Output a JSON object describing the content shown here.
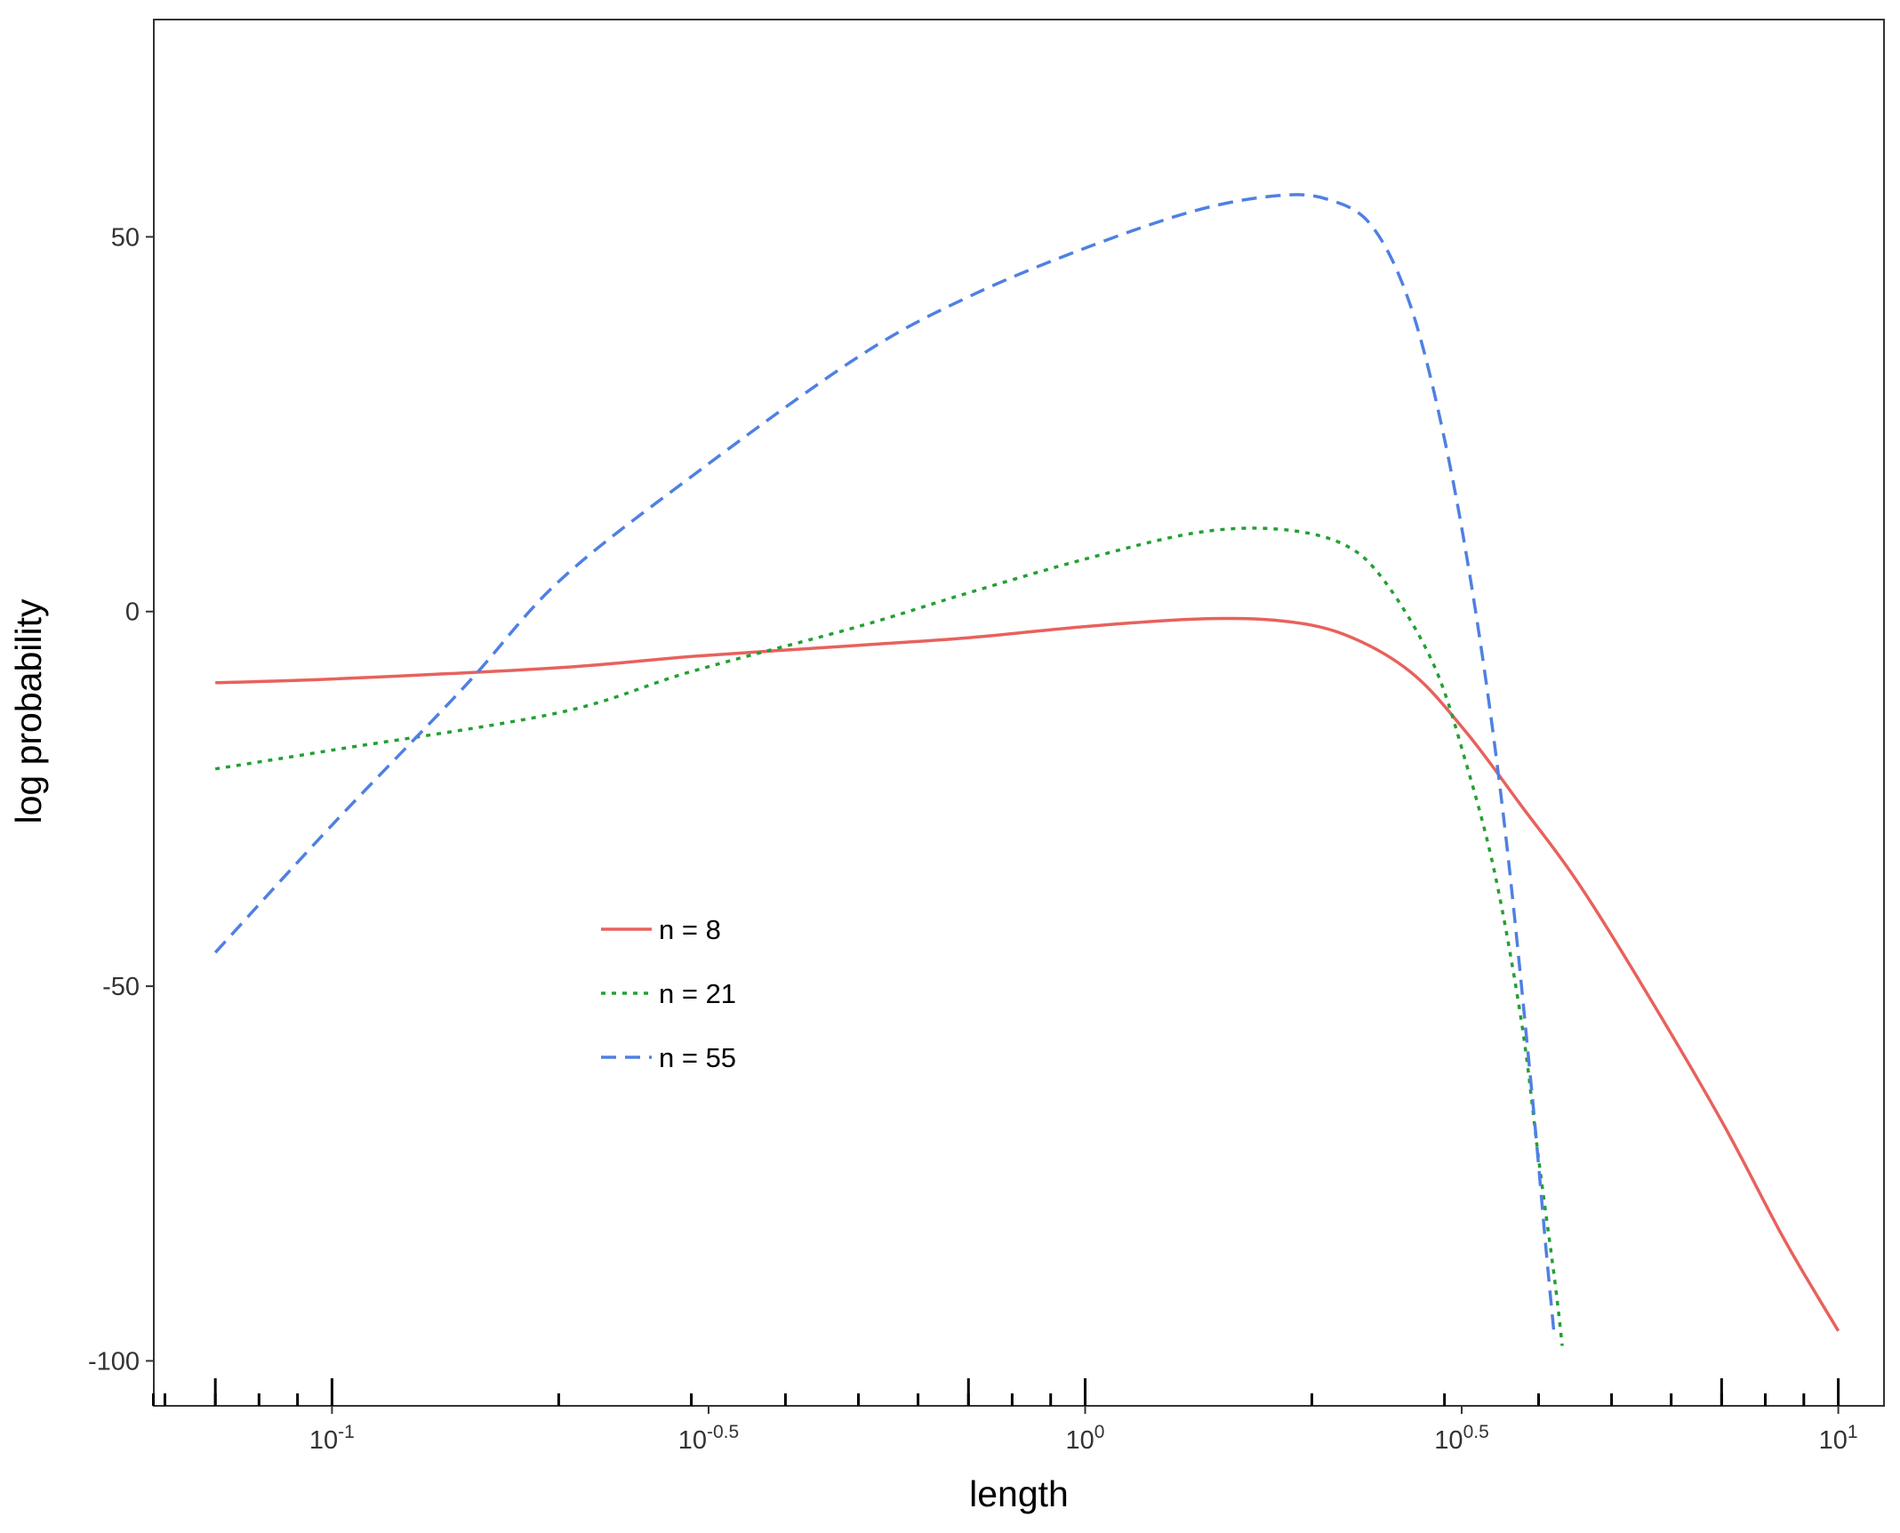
{
  "chart_data": {
    "type": "line",
    "title": "",
    "xlabel": "length",
    "ylabel": "log probability",
    "x_scale": "log10",
    "xlim": [
      0.058,
      11.5
    ],
    "ylim": [
      -106,
      79
    ],
    "grid": false,
    "legend_position": "inside-left",
    "x_ticks": [
      {
        "value": 0.1,
        "base": "10",
        "exp": "-1"
      },
      {
        "value": 0.31623,
        "base": "10",
        "exp": "-0.5"
      },
      {
        "value": 1,
        "base": "10",
        "exp": "0"
      },
      {
        "value": 3.16228,
        "base": "10",
        "exp": "0.5"
      },
      {
        "value": 10,
        "base": "10",
        "exp": "1"
      }
    ],
    "x_minor_ticks": [
      0.06,
      0.07,
      0.08,
      0.09,
      0.2,
      0.3,
      0.4,
      0.5,
      0.6,
      0.7,
      0.8,
      0.9,
      2,
      3,
      4,
      5,
      6,
      7,
      8,
      9
    ],
    "x_major_rug": [
      0.07,
      0.1,
      0.7,
      1,
      7,
      10
    ],
    "y_ticks": [
      {
        "value": 50,
        "label": "50"
      },
      {
        "value": 0,
        "label": "0"
      },
      {
        "value": -50,
        "label": "-50"
      },
      {
        "value": -100,
        "label": "-100"
      }
    ],
    "series": [
      {
        "name": "n = 8",
        "color": "#E8615D",
        "dash": "solid",
        "x": [
          0.07,
          0.1,
          0.2,
          0.3,
          0.5,
          0.7,
          1.0,
          1.4,
          1.8,
          2.2,
          2.7,
          3.2,
          3.8,
          4.5,
          5.5,
          7.0,
          8.5,
          10.0
        ],
        "y": [
          -9.5,
          -9.0,
          -7.5,
          -6.0,
          -4.5,
          -3.5,
          -2.0,
          -1.0,
          -1.2,
          -3.0,
          -8.0,
          -16.0,
          -26.0,
          -36.0,
          -50.0,
          -68.0,
          -84.0,
          -96.0
        ]
      },
      {
        "name": "n = 21",
        "color": "#23A033",
        "dash": "dotted",
        "x": [
          0.07,
          0.1,
          0.2,
          0.3,
          0.5,
          0.7,
          1.0,
          1.4,
          1.8,
          2.2,
          2.5,
          2.9,
          3.2,
          3.5,
          3.8,
          4.0,
          4.2,
          4.3
        ],
        "y": [
          -21.0,
          -18.5,
          -13.5,
          -8.0,
          -2.0,
          2.5,
          7.0,
          10.5,
          11.0,
          9.0,
          4.0,
          -7.0,
          -20.0,
          -35.0,
          -55.0,
          -73.0,
          -89.0,
          -98.0
        ]
      },
      {
        "name": "n = 55",
        "color": "#4F80E2",
        "dash": "dashed",
        "x": [
          0.07,
          0.1,
          0.15,
          0.2,
          0.3,
          0.5,
          0.7,
          1.0,
          1.4,
          1.8,
          2.1,
          2.4,
          2.7,
          3.0,
          3.3,
          3.6,
          3.9,
          4.1,
          4.2
        ],
        "y": [
          -45.5,
          -28.5,
          -10.0,
          4.0,
          18.0,
          34.0,
          42.0,
          48.5,
          53.5,
          55.5,
          55.0,
          51.5,
          41.0,
          23.0,
          0.0,
          -28.0,
          -62.0,
          -86.0,
          -97.0
        ]
      }
    ]
  }
}
